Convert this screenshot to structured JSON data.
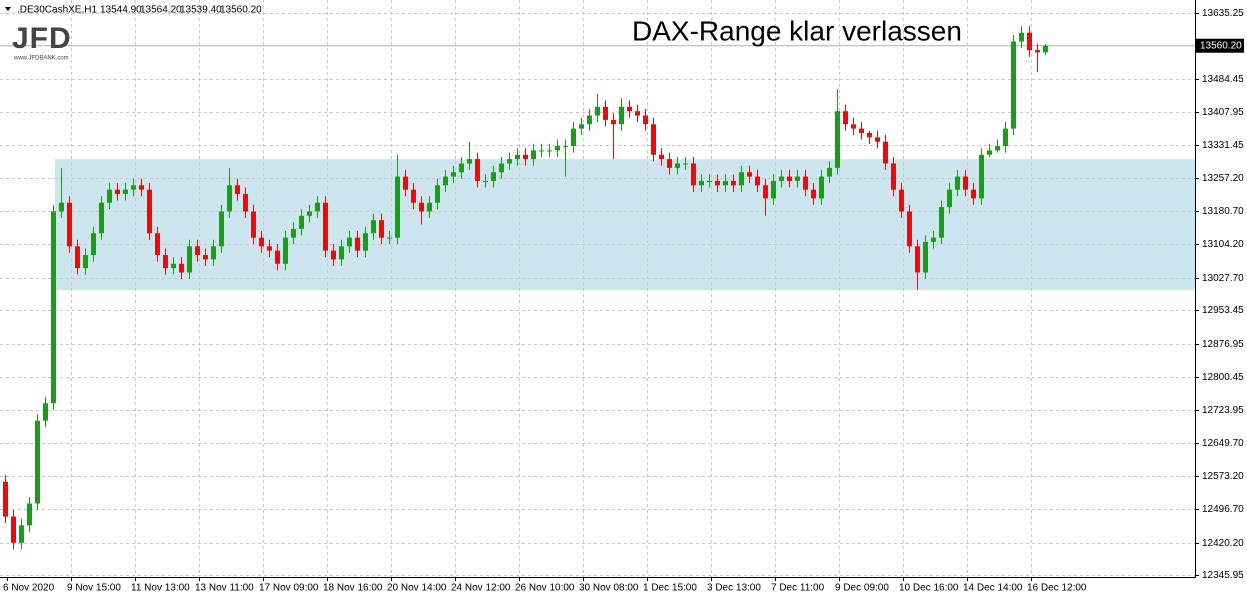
{
  "chart_data": {
    "type": "candlestick",
    "header": {
      "symbol": ".DE30CashXE,H1",
      "values": [
        13544.9,
        13564.2,
        13539.4,
        13560.2
      ],
      "value_labels": [
        "13544.90",
        "13564.20",
        "13539.40",
        "13560.20"
      ]
    },
    "logo": {
      "name": "JFD",
      "url": "www.JFDBANK.com"
    },
    "annotation": "DAX-Range klar verlassen",
    "categories": [
      "6 Nov 2020",
      "9 Nov 15:00",
      "11 Nov 13:00",
      "13 Nov 11:00",
      "17 Nov 09:00",
      "18 Nov 16:00",
      "20 Nov 14:00",
      "24 Nov 12:00",
      "26 Nov 10:00",
      "30 Nov 08:00",
      "1 Dec 15:00",
      "3 Dec 13:00",
      "7 Dec 11:00",
      "9 Dec 09:00",
      "10 Dec 16:00",
      "14 Dec 14:00",
      "16 Dec 12:00"
    ],
    "open": [
      12560,
      12480,
      12420,
      12460,
      12510,
      12700,
      12740,
      13180,
      13200,
      13100,
      13050,
      13080,
      13130,
      13200,
      13230,
      13220,
      13230,
      13240,
      13230,
      13130,
      13080,
      13050,
      13060,
      13040,
      13100,
      13080,
      13070,
      13100,
      13180,
      13240,
      13220,
      13180,
      13120,
      13100,
      13090,
      13060,
      13120,
      13140,
      13170,
      13180,
      13200,
      13090,
      13070,
      13100,
      13120,
      13090,
      13130,
      13160,
      13120,
      13120,
      13260,
      13230,
      13200,
      13180,
      13200,
      13240,
      13260,
      13270,
      13290,
      13300,
      13250,
      13250,
      13270,
      13290,
      13300,
      13310,
      13300,
      13320,
      13320,
      13320,
      13330,
      13330,
      13370,
      13380,
      13400,
      13420,
      13390,
      13380,
      13420,
      13410,
      13400,
      13380,
      13310,
      13300,
      13280,
      13290,
      13290,
      13240,
      13250,
      13250,
      13240,
      13250,
      13240,
      13270,
      13260,
      13240,
      13210,
      13250,
      13260,
      13250,
      13260,
      13230,
      13210,
      13260,
      13280,
      13410,
      13380,
      13370,
      13360,
      13350,
      13340,
      13290,
      13230,
      13180,
      13100,
      13040,
      13110,
      13120,
      13190,
      13230,
      13260,
      13230,
      13210,
      13310,
      13320,
      13330,
      13370,
      13570,
      13590,
      13550,
      13544.9
    ],
    "high": [
      12575,
      12495,
      12475,
      12525,
      12715,
      12755,
      13195,
      13280,
      13215,
      13115,
      13095,
      13145,
      13215,
      13245,
      13245,
      13245,
      13255,
      13255,
      13245,
      13145,
      13095,
      13075,
      13075,
      13115,
      13115,
      13095,
      13115,
      13195,
      13280,
      13255,
      13235,
      13195,
      13135,
      13115,
      13105,
      13135,
      13155,
      13185,
      13195,
      13215,
      13215,
      13105,
      13115,
      13135,
      13135,
      13145,
      13175,
      13175,
      13135,
      13310,
      13275,
      13245,
      13215,
      13215,
      13255,
      13275,
      13285,
      13305,
      13340,
      13315,
      13265,
      13285,
      13305,
      13315,
      13325,
      13325,
      13335,
      13335,
      13335,
      13345,
      13345,
      13385,
      13395,
      13415,
      13450,
      13435,
      13405,
      13440,
      13435,
      13425,
      13415,
      13395,
      13325,
      13315,
      13305,
      13305,
      13305,
      13265,
      13265,
      13265,
      13265,
      13265,
      13285,
      13285,
      13275,
      13255,
      13265,
      13275,
      13275,
      13275,
      13275,
      13245,
      13275,
      13295,
      13460,
      13425,
      13395,
      13385,
      13365,
      13365,
      13355,
      13305,
      13245,
      13195,
      13115,
      13125,
      13135,
      13205,
      13245,
      13275,
      13275,
      13245,
      13325,
      13335,
      13345,
      13385,
      13585,
      13605,
      13605,
      13565,
      13564.2
    ],
    "low": [
      12465,
      12405,
      12405,
      12445,
      12495,
      12685,
      12725,
      13165,
      13085,
      13035,
      13035,
      13065,
      13115,
      13185,
      13205,
      13205,
      13215,
      13215,
      13115,
      13065,
      13035,
      13035,
      13025,
      13025,
      13065,
      13055,
      13055,
      13085,
      13165,
      13205,
      13165,
      13105,
      13085,
      13075,
      13045,
      13045,
      13105,
      13125,
      13155,
      13165,
      13075,
      13055,
      13055,
      13085,
      13075,
      13075,
      13115,
      13105,
      13105,
      13105,
      13215,
      13185,
      13150,
      13165,
      13185,
      13225,
      13245,
      13255,
      13275,
      13235,
      13235,
      13235,
      13255,
      13275,
      13285,
      13285,
      13285,
      13305,
      13305,
      13305,
      13260,
      13315,
      13355,
      13365,
      13385,
      13375,
      13300,
      13365,
      13395,
      13385,
      13365,
      13295,
      13285,
      13265,
      13265,
      13275,
      13225,
      13225,
      13235,
      13225,
      13225,
      13225,
      13225,
      13245,
      13225,
      13170,
      13195,
      13235,
      13235,
      13235,
      13215,
      13195,
      13195,
      13245,
      13265,
      13365,
      13355,
      13345,
      13335,
      13325,
      13275,
      13215,
      13165,
      13085,
      13000,
      13025,
      13095,
      13105,
      13175,
      13215,
      13215,
      13195,
      13195,
      13305,
      13315,
      13315,
      13355,
      13555,
      13535,
      13500,
      13539.4
    ],
    "close": [
      12480,
      12420,
      12460,
      12510,
      12700,
      12740,
      13180,
      13200,
      13100,
      13050,
      13080,
      13130,
      13200,
      13230,
      13220,
      13230,
      13240,
      13230,
      13130,
      13080,
      13050,
      13060,
      13040,
      13100,
      13080,
      13070,
      13100,
      13180,
      13240,
      13220,
      13180,
      13120,
      13100,
      13090,
      13060,
      13120,
      13140,
      13170,
      13180,
      13200,
      13090,
      13070,
      13100,
      13120,
      13090,
      13130,
      13160,
      13120,
      13120,
      13260,
      13230,
      13200,
      13180,
      13200,
      13240,
      13260,
      13270,
      13290,
      13300,
      13250,
      13250,
      13270,
      13290,
      13300,
      13310,
      13300,
      13320,
      13320,
      13320,
      13330,
      13330,
      13370,
      13380,
      13400,
      13420,
      13390,
      13380,
      13420,
      13410,
      13400,
      13380,
      13310,
      13300,
      13280,
      13290,
      13290,
      13240,
      13250,
      13250,
      13240,
      13250,
      13240,
      13270,
      13260,
      13240,
      13210,
      13250,
      13260,
      13250,
      13260,
      13230,
      13210,
      13260,
      13280,
      13410,
      13380,
      13370,
      13360,
      13350,
      13340,
      13290,
      13230,
      13180,
      13100,
      13040,
      13110,
      13120,
      13190,
      13230,
      13260,
      13230,
      13210,
      13310,
      13320,
      13330,
      13370,
      13570,
      13590,
      13550,
      13544.9,
      13560.2
    ],
    "up_color": "#1f9a1f",
    "down_color": "#e01010",
    "range_box": {
      "low": 13000,
      "high": 13300,
      "color": "#cce5ee"
    },
    "current_price": {
      "value": 13560.2,
      "label": "13560.20"
    },
    "ylim": [
      12341.4,
      13658.2
    ],
    "yticks": [
      13635.25,
      13484.45,
      13407.95,
      13331.45,
      {
        "value": 13257.2,
        "label": "13257.20"
      },
      {
        "value": 13180.7,
        "label": "13180.70"
      },
      {
        "value": 13104.2,
        "label": "13104.20"
      },
      {
        "value": 13027.7,
        "label": "13027.70"
      },
      12953.45,
      12876.95,
      12800.45,
      12723.95,
      {
        "value": 12649.7,
        "label": "12649.70"
      },
      {
        "value": 12573.2,
        "label": "12573.20"
      },
      {
        "value": 12496.7,
        "label": "12496.70"
      },
      {
        "value": 12420.2,
        "label": "12420.20"
      },
      12345.95
    ],
    "grid": true
  }
}
